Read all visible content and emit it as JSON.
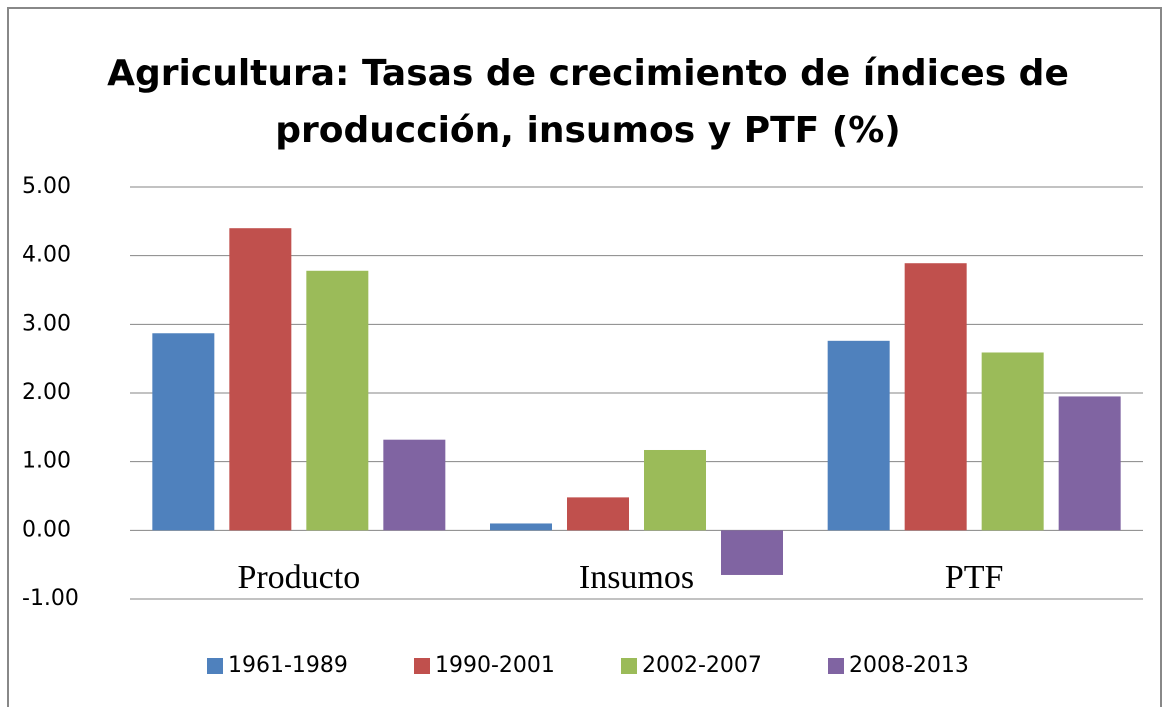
{
  "chart_data": {
    "type": "bar",
    "title": [
      "Agricultura: Tasas de crecimiento de índices de",
      "producción, insumos y PTF (%)"
    ],
    "categories": [
      "Producto",
      "Insumos",
      "PTF"
    ],
    "series": [
      {
        "name": "1961-1989",
        "color": "#4f81bd",
        "values": [
          2.87,
          0.1,
          2.76
        ]
      },
      {
        "name": "1990-2001",
        "color": "#c0504d",
        "values": [
          4.4,
          0.48,
          3.89
        ]
      },
      {
        "name": "2002-2007",
        "color": "#9bbb59",
        "values": [
          3.78,
          1.17,
          2.59
        ]
      },
      {
        "name": "2008-2013",
        "color": "#8064a2",
        "values": [
          1.32,
          -0.65,
          1.95
        ]
      }
    ],
    "ylim": [
      -1,
      5
    ],
    "yticks": [
      {
        "value": -1,
        "label": "-1.00"
      },
      {
        "value": 0,
        "label": "0.00"
      },
      {
        "value": 1,
        "label": "1.00"
      },
      {
        "value": 2,
        "label": "2.00"
      },
      {
        "value": 3,
        "label": "3.00"
      },
      {
        "value": 4,
        "label": "4.00"
      },
      {
        "value": 5,
        "label": "5.00"
      }
    ],
    "grid": true,
    "legend": "bottom"
  }
}
